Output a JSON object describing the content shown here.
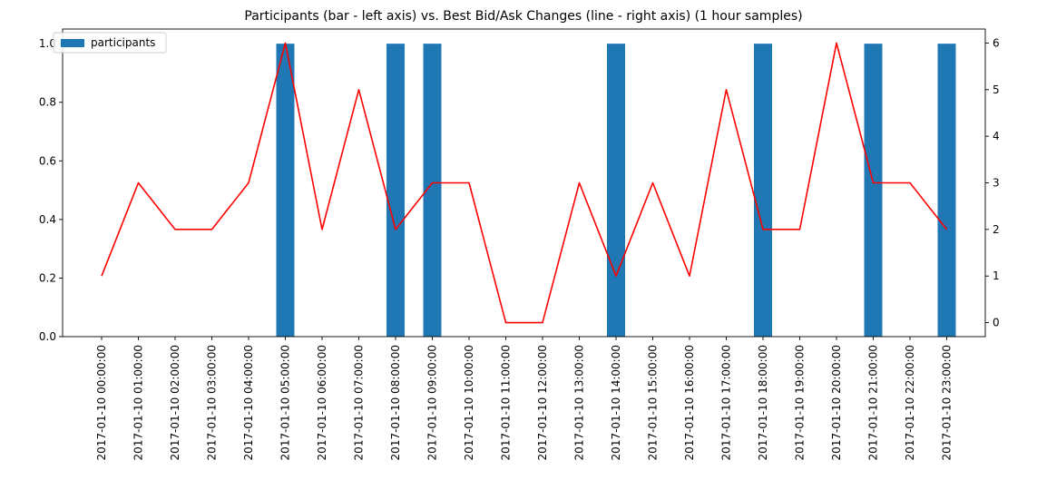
{
  "chart_data": {
    "type": "bar+line",
    "title": "Participants (bar - left axis) vs. Best Bid/Ask Changes (line - right axis) (1 hour samples)",
    "categories": [
      "2017-01-10 00:00:00",
      "2017-01-10 01:00:00",
      "2017-01-10 02:00:00",
      "2017-01-10 03:00:00",
      "2017-01-10 04:00:00",
      "2017-01-10 05:00:00",
      "2017-01-10 06:00:00",
      "2017-01-10 07:00:00",
      "2017-01-10 08:00:00",
      "2017-01-10 09:00:00",
      "2017-01-10 10:00:00",
      "2017-01-10 11:00:00",
      "2017-01-10 12:00:00",
      "2017-01-10 13:00:00",
      "2017-01-10 14:00:00",
      "2017-01-10 15:00:00",
      "2017-01-10 16:00:00",
      "2017-01-10 17:00:00",
      "2017-01-10 18:00:00",
      "2017-01-10 19:00:00",
      "2017-01-10 20:00:00",
      "2017-01-10 21:00:00",
      "2017-01-10 22:00:00",
      "2017-01-10 23:00:00"
    ],
    "series": [
      {
        "name": "participants",
        "kind": "bar",
        "axis": "left",
        "color": "#1f77b4",
        "values": [
          0,
          0,
          0,
          0,
          0,
          1,
          0,
          0,
          1,
          1,
          0,
          0,
          0,
          0,
          1,
          0,
          0,
          0,
          1,
          0,
          0,
          1,
          0,
          1
        ]
      },
      {
        "kind": "line",
        "axis": "right",
        "color": "#ff0000",
        "values": [
          1,
          3,
          2,
          2,
          3,
          6,
          2,
          5,
          2,
          3,
          3,
          0,
          0,
          3,
          1,
          3,
          1,
          5,
          2,
          2,
          6,
          3,
          3,
          2
        ]
      }
    ],
    "left_axis": {
      "ylim": [
        0,
        1.05
      ],
      "ticks": [
        "0.0",
        "0.2",
        "0.4",
        "0.6",
        "0.8",
        "1.0"
      ],
      "tick_values": [
        0,
        0.2,
        0.4,
        0.6,
        0.8,
        1.0
      ]
    },
    "right_axis": {
      "ylim": [
        -0.3,
        6.3
      ],
      "ticks": [
        "0",
        "1",
        "2",
        "3",
        "4",
        "5",
        "6"
      ],
      "tick_values": [
        0,
        1,
        2,
        3,
        4,
        5,
        6
      ]
    },
    "legend": {
      "placement": "upper-left",
      "entries": [
        "participants"
      ]
    },
    "grid": false
  }
}
